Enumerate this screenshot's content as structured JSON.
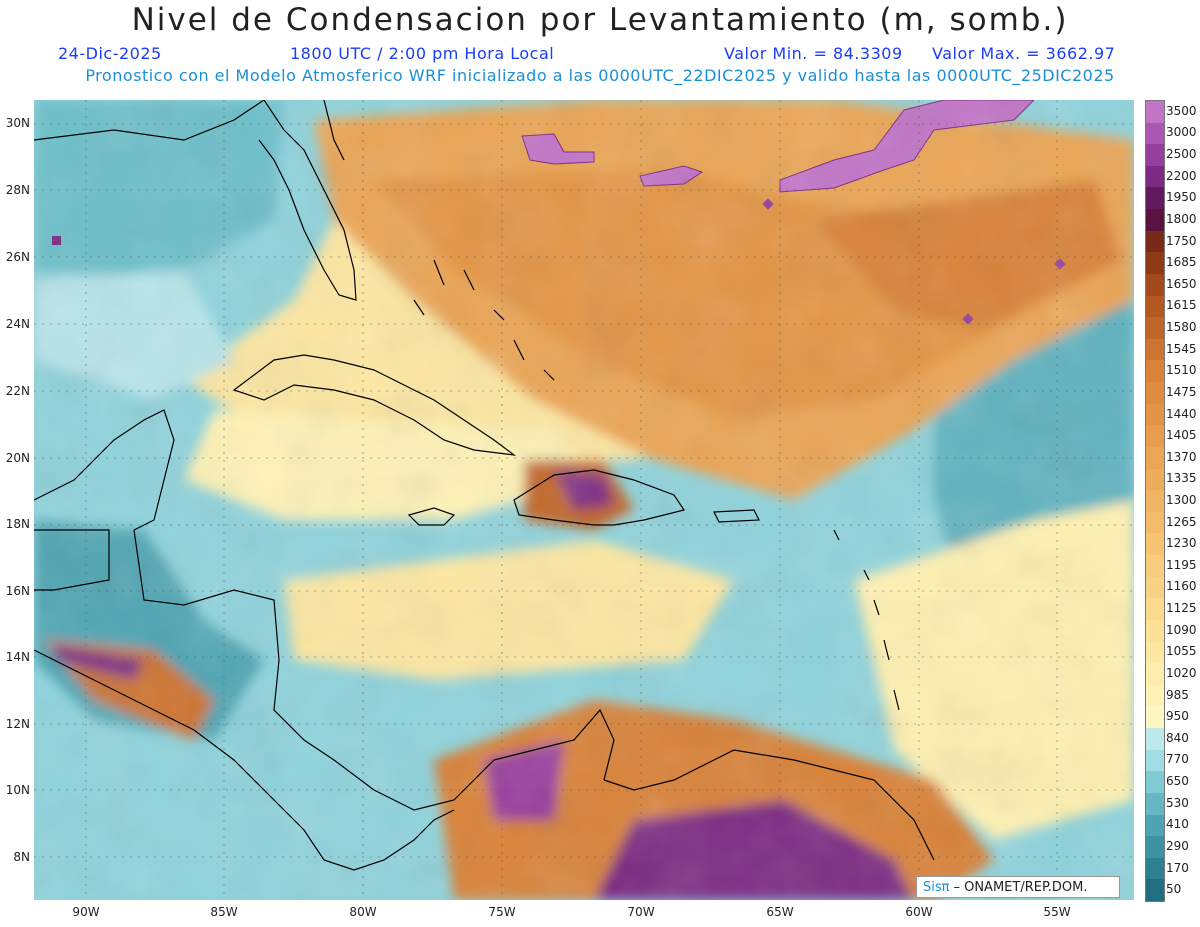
{
  "header": {
    "title": "Nivel de Condensacion por Levantamiento (m, somb.)",
    "date": "24-Dic-2025",
    "time": "1800 UTC / 2:00 pm Hora Local",
    "min": "Valor Min. = 84.3309",
    "max": "Valor Max. = 3662.97",
    "info": "Pronostico con el Modelo Atmosferico WRF inicializado a las 0000UTC_22DIC2025 y valido hasta las  0000UTC_25DIC2025"
  },
  "map": {
    "lat_labels": [
      "30N",
      "28N",
      "26N",
      "24N",
      "22N",
      "20N",
      "18N",
      "16N",
      "14N",
      "12N",
      "10N",
      "8N"
    ],
    "lon_labels": [
      "90W",
      "85W",
      "80W",
      "75W",
      "70W",
      "65W",
      "60W",
      "55W"
    ]
  },
  "legend": {
    "labels": [
      "3500",
      "3000",
      "2500",
      "2200",
      "1950",
      "1800",
      "1750",
      "1685",
      "1650",
      "1615",
      "1580",
      "1545",
      "1510",
      "1475",
      "1440",
      "1405",
      "1370",
      "1335",
      "1300",
      "1265",
      "1230",
      "1195",
      "1160",
      "1125",
      "1090",
      "1055",
      "1020",
      "985",
      "950",
      "840",
      "770",
      "650",
      "530",
      "410",
      "290",
      "170",
      "50"
    ],
    "colors": [
      "#c275c7",
      "#ad57b4",
      "#963e9d",
      "#7c2a82",
      "#61195f",
      "#5a1240",
      "#7a2a18",
      "#8f3a17",
      "#a34a1d",
      "#b45820",
      "#c26528",
      "#ce7430",
      "#d98238",
      "#df8c3e",
      "#e39545",
      "#e79d4c",
      "#eba554",
      "#eead5a",
      "#f1b462",
      "#f3bb6a",
      "#f6c473",
      "#f8cc7c",
      "#f9d385",
      "#fbda8e",
      "#fce197",
      "#fde7a1",
      "#feedac",
      "#fef2b6",
      "#fff6c1",
      "#bde9ec",
      "#9fdde3",
      "#80cbd3",
      "#65b8c3",
      "#4fa5b3",
      "#3d93a3",
      "#2d8091",
      "#1f6f80"
    ]
  },
  "credit": {
    "sis": "Sisπ",
    "text": "– ONAMET/REP.DOM."
  }
}
